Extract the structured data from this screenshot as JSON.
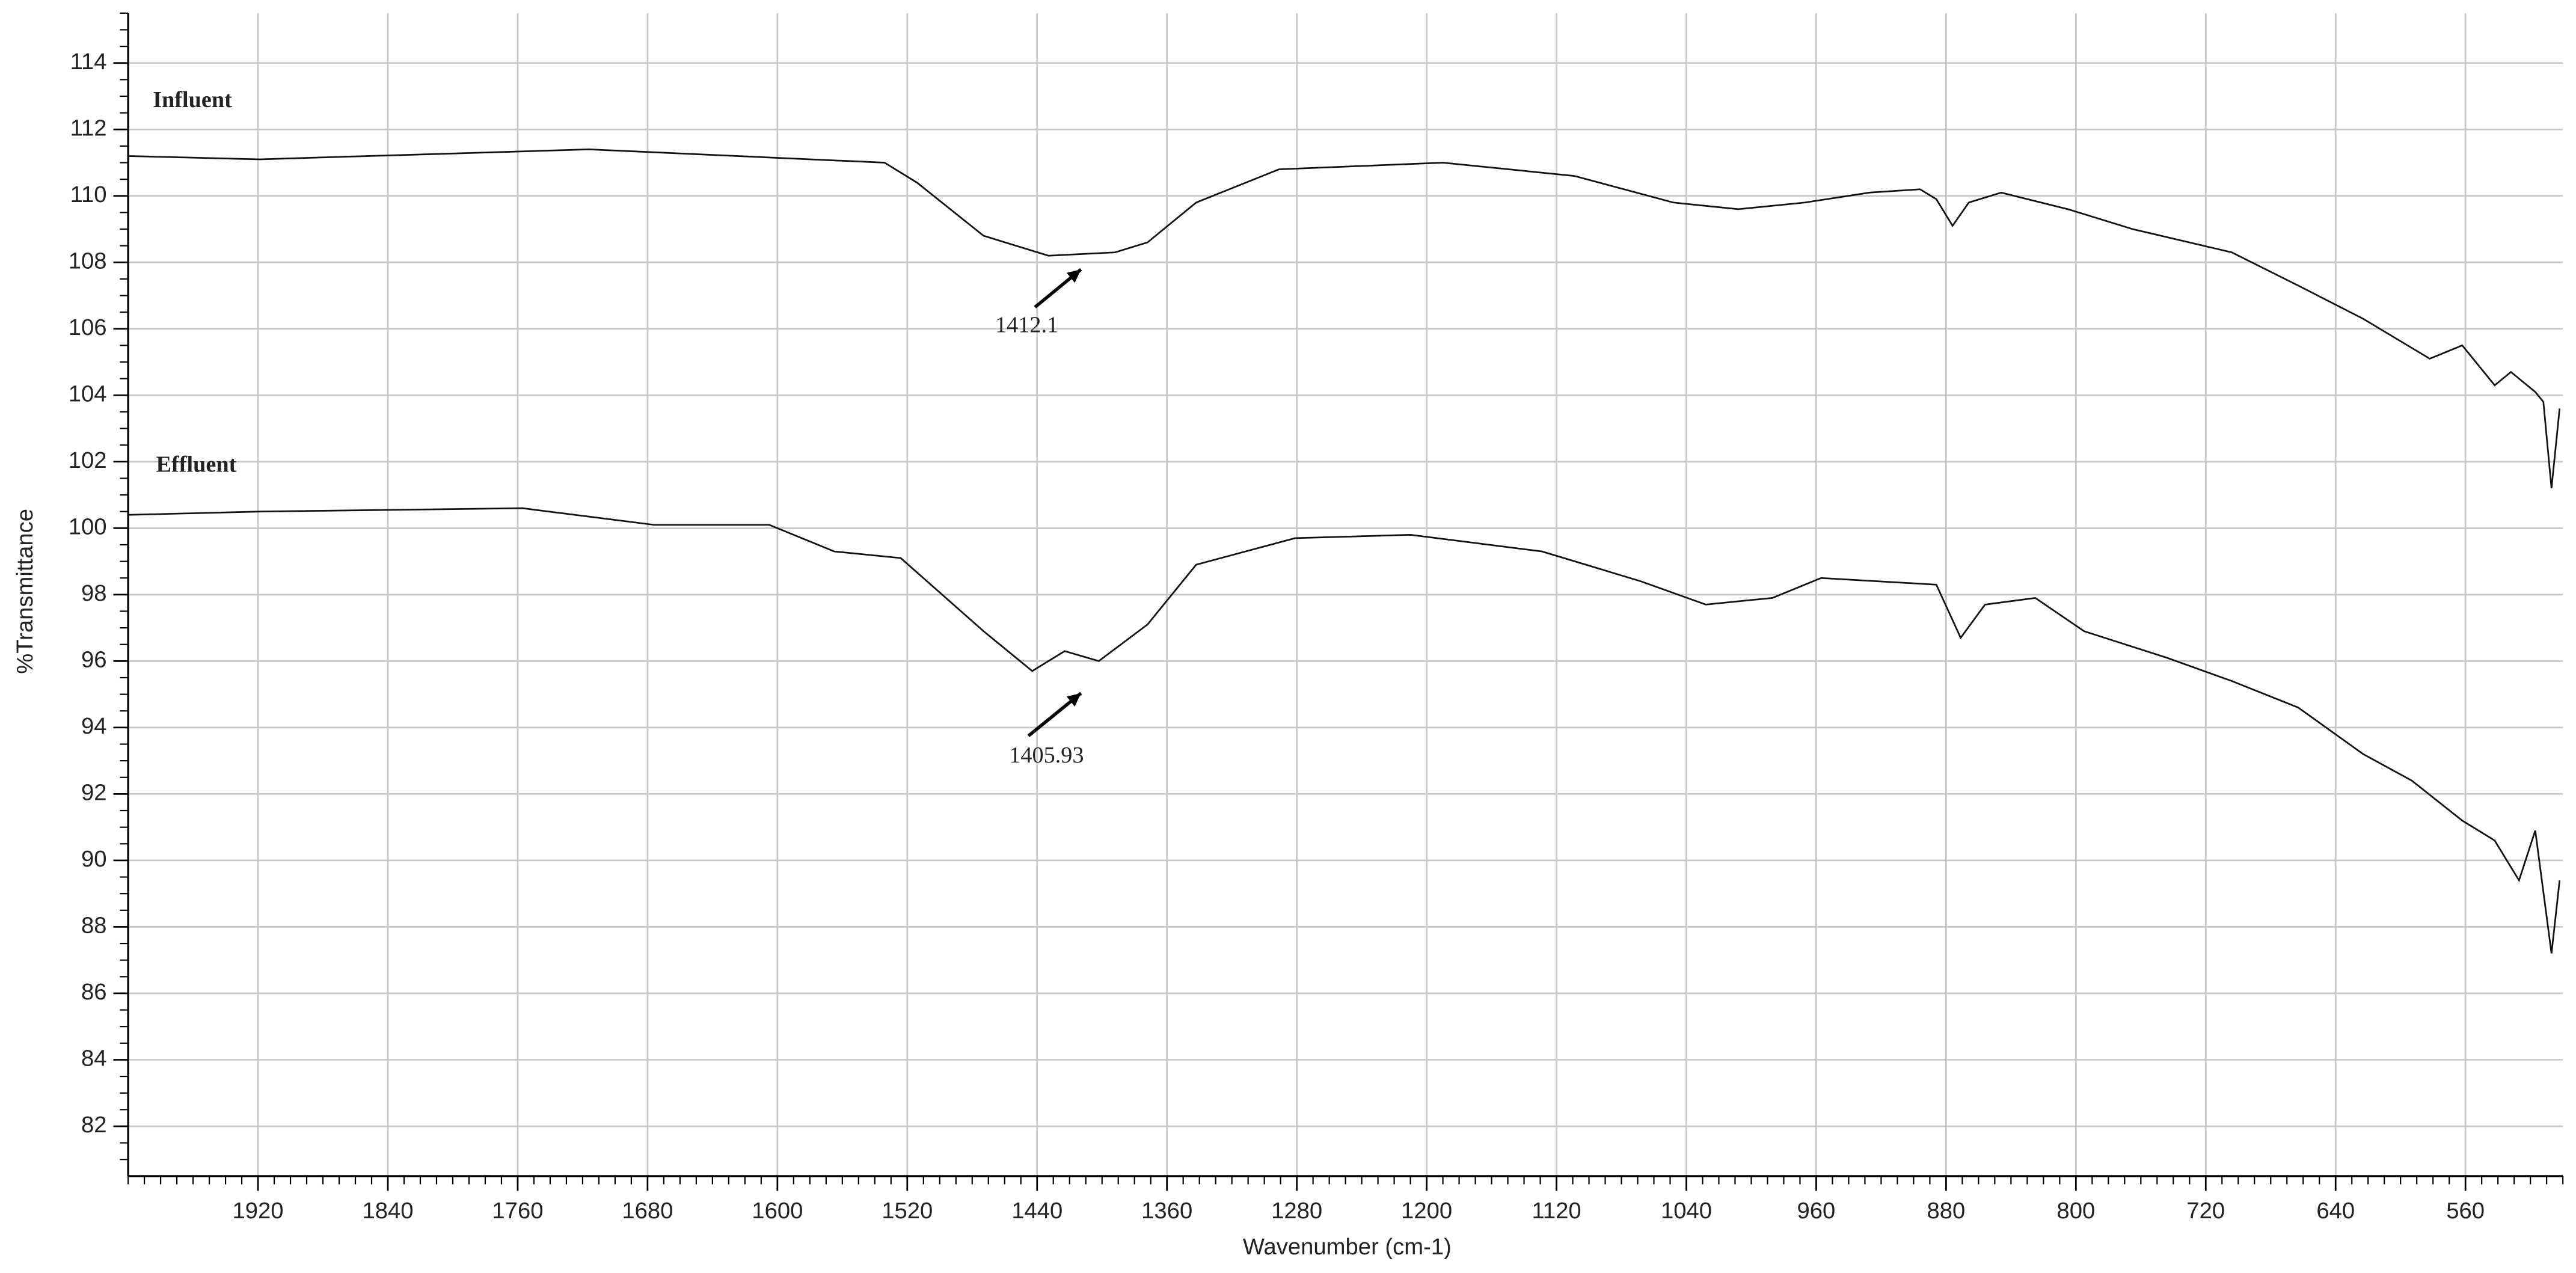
{
  "chart_data": {
    "type": "line",
    "x_label": "Wavenumber (cm-1)",
    "y_label": "%Transmittance",
    "xlim": [
      2000,
      500
    ],
    "ylim": [
      80.5,
      115.5
    ],
    "xticks": [
      1920,
      1840,
      1760,
      1680,
      1600,
      1520,
      1440,
      1360,
      1280,
      1200,
      1120,
      1040,
      960,
      880,
      800,
      720,
      640,
      560
    ],
    "yticks": [
      82,
      84,
      86,
      88,
      90,
      92,
      94,
      96,
      98,
      100,
      102,
      104,
      106,
      108,
      110,
      112,
      114
    ],
    "grid": true,
    "series": [
      {
        "name": "Influent",
        "color": "#111111",
        "x": [
          2000,
          1919,
          1716,
          1534,
          1514,
          1473,
          1433,
          1392,
          1372,
          1342,
          1291,
          1190,
          1109,
          1048,
          1008,
          967,
          927,
          896,
          886,
          876,
          866,
          846,
          805,
          765,
          704,
          663,
          623,
          582,
          562,
          542,
          532,
          517,
          512,
          507,
          502
        ],
        "values": [
          111.2,
          111.1,
          111.4,
          111.0,
          110.4,
          108.8,
          108.2,
          108.3,
          108.6,
          109.8,
          110.8,
          111.0,
          110.6,
          109.8,
          109.6,
          109.8,
          110.1,
          110.2,
          109.9,
          109.1,
          109.8,
          110.1,
          109.6,
          109.0,
          108.3,
          107.3,
          106.3,
          105.1,
          105.5,
          104.3,
          104.7,
          104.1,
          103.8,
          101.2,
          103.6
        ]
      },
      {
        "name": "Effluent",
        "color": "#111111",
        "x": [
          2000,
          1919,
          1757,
          1676,
          1605,
          1565,
          1524,
          1473,
          1443,
          1423,
          1402,
          1372,
          1342,
          1281,
          1210,
          1129,
          1068,
          1028,
          987,
          957,
          886,
          871,
          856,
          825,
          795,
          744,
          704,
          663,
          623,
          593,
          562,
          542,
          527,
          517,
          507,
          502
        ],
        "values": [
          100.4,
          100.5,
          100.6,
          100.1,
          100.1,
          99.3,
          99.1,
          96.9,
          95.7,
          96.3,
          96.0,
          97.1,
          98.9,
          99.7,
          99.8,
          99.3,
          98.4,
          97.7,
          97.9,
          98.5,
          98.3,
          96.7,
          97.7,
          97.9,
          96.9,
          96.1,
          95.4,
          94.6,
          93.2,
          92.4,
          91.2,
          90.6,
          89.4,
          90.9,
          87.2,
          89.4
        ]
      }
    ],
    "annotations": [
      "1412.1",
      "1405.93"
    ]
  }
}
